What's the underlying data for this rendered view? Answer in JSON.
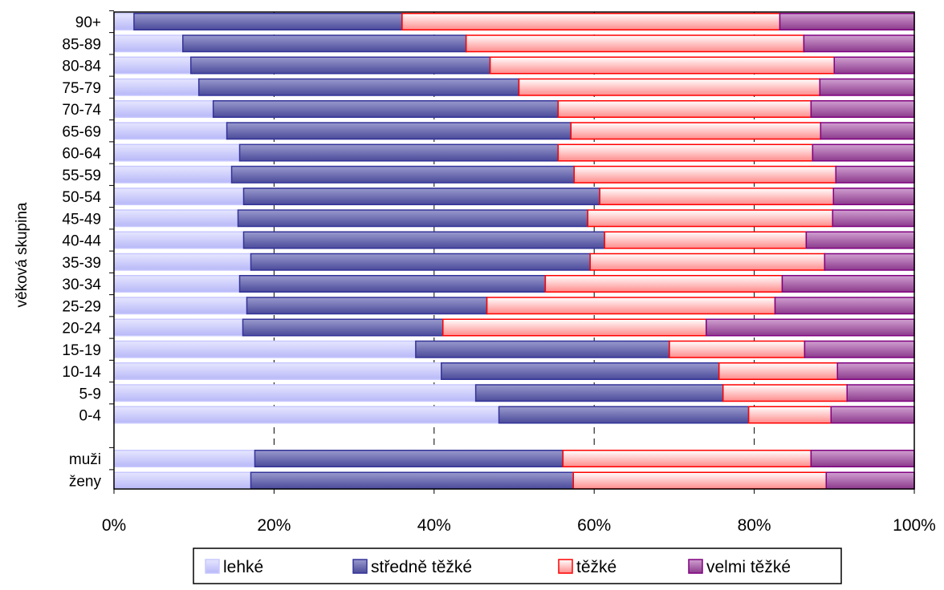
{
  "chart_data": {
    "type": "bar",
    "orientation": "horizontal",
    "stacked": "percent",
    "title": "",
    "xlabel": "",
    "ylabel": "věková skupina",
    "xlim": [
      0,
      100
    ],
    "x_ticks": [
      "0%",
      "20%",
      "40%",
      "60%",
      "80%",
      "100%"
    ],
    "grid": "vertical dashed",
    "legend_position": "bottom",
    "categories": [
      "90+",
      "85-89",
      "80-84",
      "75-79",
      "70-74",
      "65-69",
      "60-64",
      "55-59",
      "50-54",
      "45-49",
      "40-44",
      "35-39",
      "30-34",
      "25-29",
      "20-24",
      "15-19",
      "10-14",
      "5-9",
      "0-4",
      "muži",
      "ženy"
    ],
    "series": [
      {
        "name": "lehké",
        "color": "#c8c8ff",
        "values": [
          2.5,
          8.6,
          9.6,
          10.6,
          12.4,
          14.1,
          15.7,
          14.7,
          16.2,
          15.5,
          16.2,
          17.1,
          15.7,
          16.6,
          16.1,
          37.7,
          40.9,
          45.2,
          48.1,
          17.6,
          17.1
        ]
      },
      {
        "name": "středně těžké",
        "color": "#333399",
        "values": [
          33.5,
          35.4,
          37.4,
          40.0,
          43.1,
          43.0,
          39.8,
          42.8,
          44.5,
          43.7,
          45.1,
          42.4,
          38.2,
          30.0,
          25.0,
          31.7,
          34.7,
          30.9,
          31.2,
          38.5,
          40.3
        ]
      },
      {
        "name": "těžké",
        "color": "#ff0000",
        "values": [
          47.2,
          42.2,
          43.0,
          37.6,
          31.6,
          31.2,
          31.8,
          32.7,
          29.2,
          30.6,
          25.2,
          29.3,
          29.6,
          36.0,
          32.9,
          16.9,
          14.8,
          15.5,
          10.3,
          31.0,
          31.6
        ]
      },
      {
        "name": "velmi těžké",
        "color": "#800080",
        "values": [
          16.8,
          13.8,
          10.0,
          11.8,
          12.9,
          11.7,
          12.7,
          9.8,
          10.1,
          10.2,
          13.5,
          11.2,
          16.5,
          17.4,
          26.0,
          13.7,
          9.6,
          8.4,
          10.4,
          12.9,
          11.0
        ]
      }
    ]
  }
}
